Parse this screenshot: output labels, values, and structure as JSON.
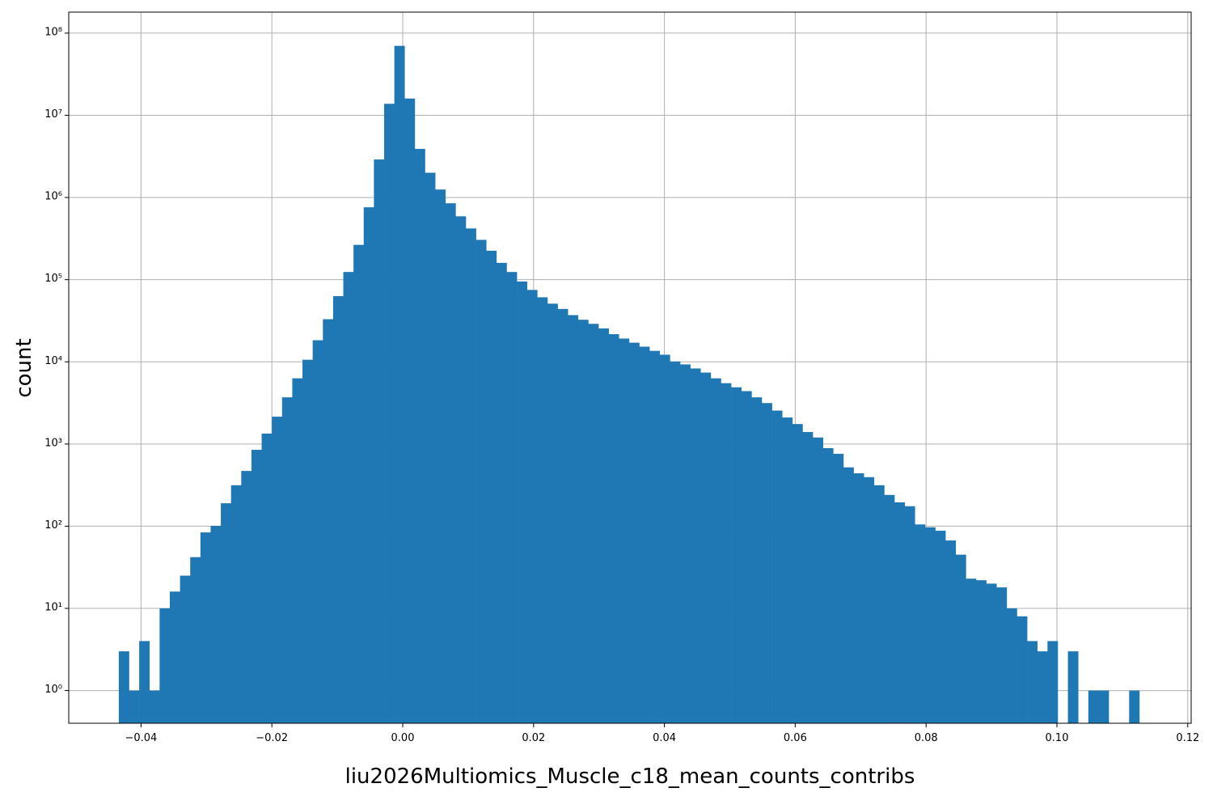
{
  "chart_data": {
    "type": "histogram",
    "xlabel": "liu2026Multiomics_Muscle_c18_mean_counts_contribs",
    "ylabel": "count",
    "color": "#1f77b4",
    "grid": true,
    "yscale": "log",
    "bins": [
      -0.0434,
      -0.04184,
      -0.04028,
      -0.03872,
      -0.03716,
      -0.0356,
      -0.03404,
      -0.03248,
      -0.03092,
      -0.02936,
      -0.0278,
      -0.02624,
      -0.02468,
      -0.02312,
      -0.02156,
      -0.02,
      -0.01844,
      -0.01688,
      -0.01532,
      -0.01376,
      -0.0122,
      -0.01064,
      -0.00908,
      -0.00752,
      -0.00596,
      -0.0044,
      -0.00284,
      -0.00128,
      0.00028,
      0.00184,
      0.0034,
      0.00496,
      0.00652,
      0.00808,
      0.00964,
      0.0112,
      0.01276,
      0.01432,
      0.01588,
      0.01744,
      0.019,
      0.02056,
      0.02212,
      0.02368,
      0.02524,
      0.0268,
      0.02836,
      0.02992,
      0.03148,
      0.03304,
      0.0346,
      0.03616,
      0.03772,
      0.03928,
      0.04084,
      0.0424,
      0.04396,
      0.04552,
      0.04708,
      0.04864,
      0.0502,
      0.05176,
      0.05332,
      0.05488,
      0.05644,
      0.058,
      0.05956,
      0.06112,
      0.06268,
      0.06424,
      0.0658,
      0.06736,
      0.06892,
      0.07048,
      0.07204,
      0.0736,
      0.07516,
      0.07672,
      0.07828,
      0.07984,
      0.0814,
      0.08296,
      0.08452,
      0.08608,
      0.08764,
      0.0892,
      0.09076,
      0.09232,
      0.09388,
      0.09544,
      0.097,
      0.09856,
      0.10012,
      0.10168,
      0.10324,
      0.1048,
      0.10636,
      0.10792,
      0.10948,
      0.11104,
      0.1126
    ],
    "values": [
      3,
      1,
      4,
      1,
      10,
      16,
      25,
      42,
      84,
      101,
      190,
      315,
      470,
      850,
      1340,
      2150,
      3700,
      6300,
      10600,
      18300,
      33000,
      63000,
      124000,
      265000,
      760000,
      2900000,
      13800000,
      70000000,
      16000000,
      3900000,
      2000000,
      1250000,
      850000,
      590000,
      420000,
      305000,
      225000,
      160000,
      124000,
      95000,
      75000,
      61000,
      51000,
      44000,
      37000,
      32500,
      29000,
      25500,
      21700,
      19200,
      17100,
      15300,
      13600,
      12200,
      10100,
      9300,
      8300,
      7400,
      6300,
      5500,
      4900,
      4400,
      3700,
      3150,
      2550,
      2100,
      1750,
      1400,
      1200,
      890,
      760,
      520,
      440,
      395,
      315,
      240,
      195,
      175,
      105,
      97,
      88,
      67,
      45,
      23,
      22,
      20,
      18,
      10,
      8,
      4,
      3,
      4,
      0,
      3,
      0,
      1,
      1,
      0,
      0,
      1
    ],
    "xlim": [
      -0.05105,
      0.12052
    ],
    "ylim": [
      0.4,
      180000000
    ],
    "xticks": [
      {
        "value": -0.04,
        "label": "−0.04"
      },
      {
        "value": -0.02,
        "label": "−0.02"
      },
      {
        "value": 0,
        "label": "0.00"
      },
      0.02,
      0.04,
      0.06,
      0.08,
      {
        "value": 0.1,
        "label": "0.10"
      },
      0.12
    ],
    "yticks": [
      {
        "value": 1,
        "label": "10⁰"
      },
      {
        "value": 10,
        "label": "10¹"
      },
      {
        "value": 100,
        "label": "10²"
      },
      {
        "value": 1000,
        "label": "10³"
      },
      {
        "value": 10000,
        "label": "10⁴"
      },
      {
        "value": 100000,
        "label": "10⁵"
      },
      {
        "value": 1000000,
        "label": "10⁶"
      },
      {
        "value": 10000000,
        "label": "10⁷"
      },
      {
        "value": 100000000,
        "label": "10⁸"
      }
    ]
  }
}
